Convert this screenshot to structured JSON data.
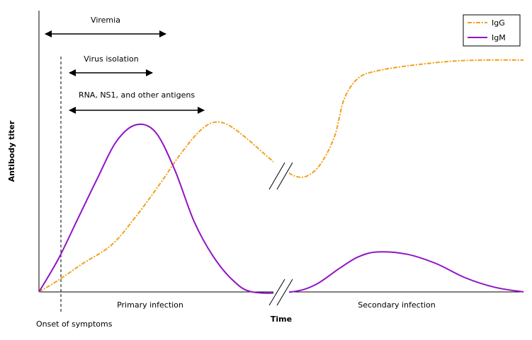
{
  "chart_data": {
    "type": "line",
    "title": "",
    "xlabel": "Time",
    "ylabel": "Antibody titer",
    "grid": false,
    "legend_position": "top-right",
    "ylim": [
      0,
      1
    ],
    "phases": {
      "primary": "Primary infection",
      "secondary": "Secondary infection"
    },
    "onset_label": "Onset of symptoms",
    "annotations": [
      {
        "name": "viremia",
        "label": "Viremia"
      },
      {
        "name": "virus-isolation",
        "label": "Virus isolation"
      },
      {
        "name": "antigens",
        "label": "RNA, NS1, and other antigens"
      }
    ],
    "series": [
      {
        "name": "IgG",
        "color": "#F0A11C",
        "dash": "dash-dot",
        "points": [
          [
            0,
            0.0
          ],
          [
            0.04,
            0.05
          ],
          [
            0.09,
            0.12
          ],
          [
            0.15,
            0.2
          ],
          [
            0.2,
            0.32
          ],
          [
            0.25,
            0.46
          ],
          [
            0.29,
            0.58
          ],
          [
            0.33,
            0.68
          ],
          [
            0.36,
            0.72
          ],
          [
            0.39,
            0.71
          ],
          [
            0.43,
            0.65
          ],
          [
            0.48,
            0.56
          ],
          [
            0.52,
            0.5
          ],
          [
            0.55,
            0.49
          ],
          [
            0.58,
            0.54
          ],
          [
            0.61,
            0.66
          ],
          [
            0.63,
            0.82
          ],
          [
            0.66,
            0.91
          ],
          [
            0.7,
            0.94
          ],
          [
            0.76,
            0.96
          ],
          [
            0.85,
            0.98
          ],
          [
            0.92,
            0.985
          ],
          [
            1.0,
            0.985
          ]
        ]
      },
      {
        "name": "IgM",
        "color": "#9013C6",
        "dash": "solid",
        "points": [
          [
            0,
            0.0
          ],
          [
            0.04,
            0.14
          ],
          [
            0.08,
            0.31
          ],
          [
            0.12,
            0.48
          ],
          [
            0.16,
            0.64
          ],
          [
            0.2,
            0.71
          ],
          [
            0.24,
            0.68
          ],
          [
            0.28,
            0.52
          ],
          [
            0.32,
            0.3
          ],
          [
            0.36,
            0.15
          ],
          [
            0.4,
            0.05
          ],
          [
            0.44,
            0.0
          ],
          [
            0.52,
            0.0
          ],
          [
            0.57,
            0.03
          ],
          [
            0.62,
            0.1
          ],
          [
            0.66,
            0.15
          ],
          [
            0.7,
            0.17
          ],
          [
            0.76,
            0.16
          ],
          [
            0.82,
            0.12
          ],
          [
            0.88,
            0.06
          ],
          [
            0.94,
            0.02
          ],
          [
            1.0,
            0.0
          ]
        ]
      }
    ]
  }
}
